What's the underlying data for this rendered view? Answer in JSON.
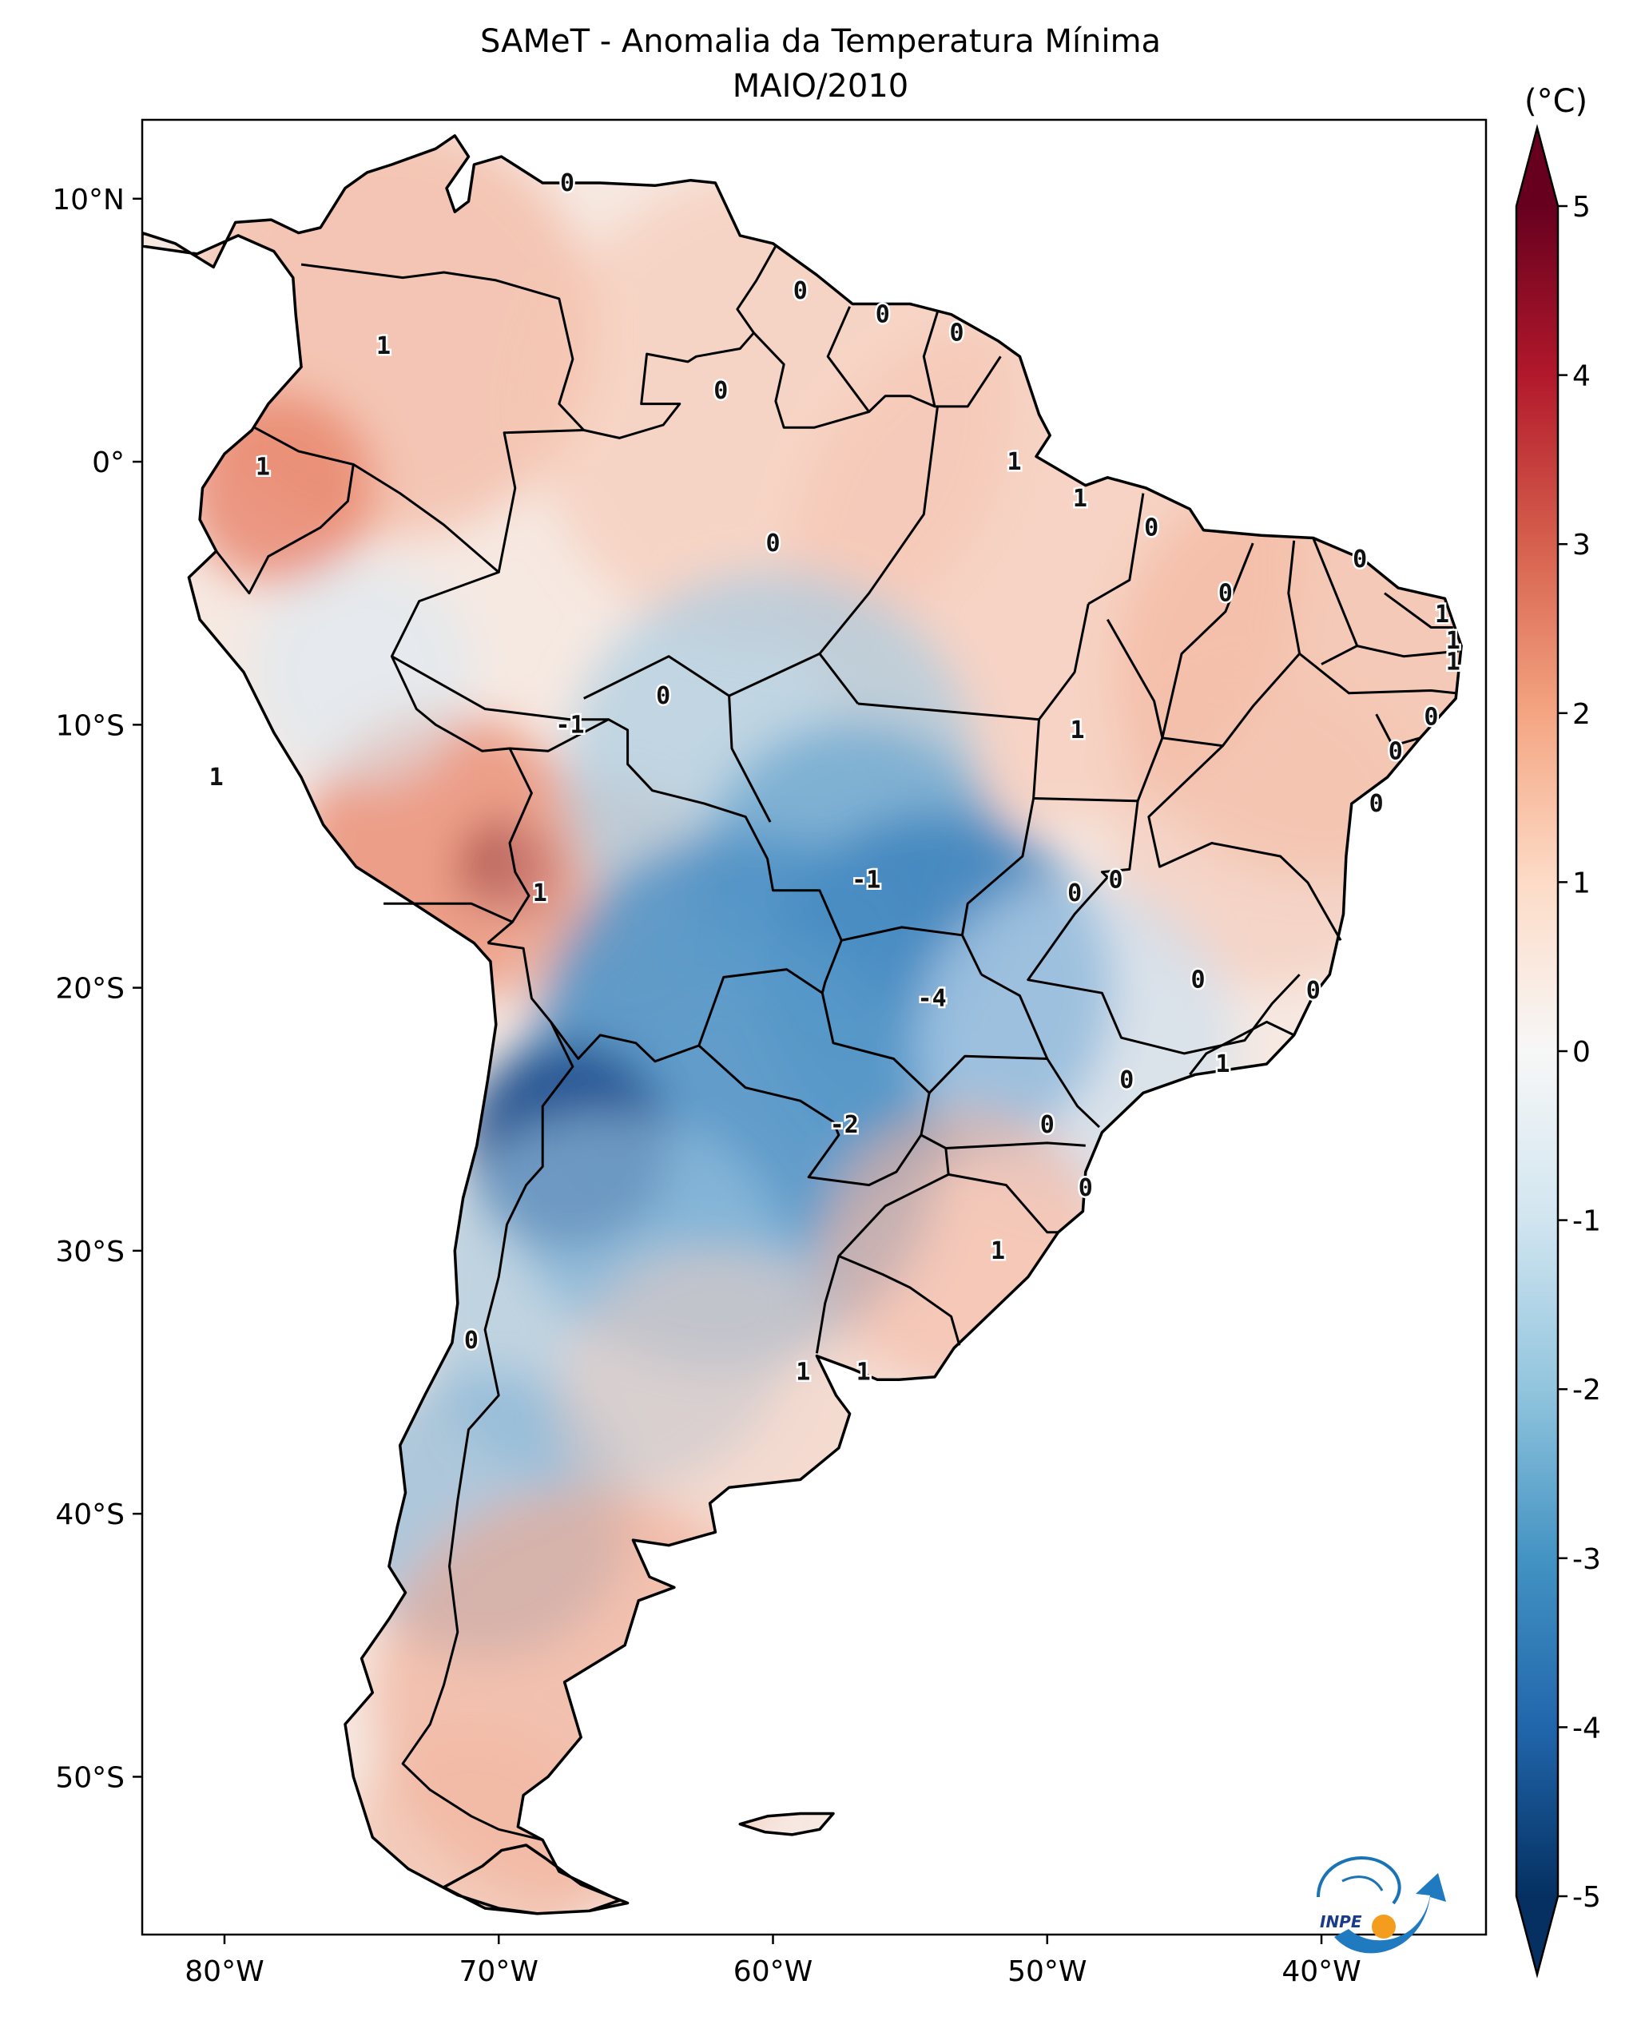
{
  "title_line1": "SAMeT - Anomalia da Temperatura Mínima",
  "title_line2": "MAIO/2010",
  "units": "(°C)",
  "logo_text": "INPE",
  "lon_ticks": [
    {
      "value": -80,
      "label": "80°W"
    },
    {
      "value": -70,
      "label": "70°W"
    },
    {
      "value": -60,
      "label": "60°W"
    },
    {
      "value": -50,
      "label": "50°W"
    },
    {
      "value": -40,
      "label": "40°W"
    }
  ],
  "lat_ticks": [
    {
      "value": 10,
      "label": "10°N"
    },
    {
      "value": 0,
      "label": "0°"
    },
    {
      "value": -10,
      "label": "10°S"
    },
    {
      "value": -20,
      "label": "20°S"
    },
    {
      "value": -30,
      "label": "30°S"
    },
    {
      "value": -40,
      "label": "40°S"
    },
    {
      "value": -50,
      "label": "50°S"
    }
  ],
  "colorbar": {
    "min": -5,
    "max": 5,
    "ticks": [
      "-5",
      "-4",
      "-3",
      "-2",
      "-1",
      "0",
      "1",
      "2",
      "3",
      "4",
      "5"
    ],
    "colors": [
      "#053061",
      "#2166ac",
      "#4393c3",
      "#92c5de",
      "#d1e5f0",
      "#f7f7f7",
      "#fddbc7",
      "#f4a582",
      "#d6604d",
      "#b2182b",
      "#67001f"
    ]
  },
  "map_extent": {
    "lon_min": -83,
    "lon_max": -34,
    "lat_min": -56,
    "lat_max": 13
  },
  "contour_labels": [
    {
      "text": "0",
      "lon": -67.5,
      "lat": 10.6
    },
    {
      "text": "0",
      "lon": -59.0,
      "lat": 6.5
    },
    {
      "text": "0",
      "lon": -56.0,
      "lat": 5.6
    },
    {
      "text": "0",
      "lon": -53.3,
      "lat": 4.9
    },
    {
      "text": "1",
      "lon": -74.2,
      "lat": 4.4
    },
    {
      "text": "0",
      "lon": -61.9,
      "lat": 2.7
    },
    {
      "text": "1",
      "lon": -78.6,
      "lat": -0.2
    },
    {
      "text": "1",
      "lon": -51.2,
      "lat": 0.0
    },
    {
      "text": "1",
      "lon": -48.8,
      "lat": -1.4
    },
    {
      "text": "0",
      "lon": -60.0,
      "lat": -3.1
    },
    {
      "text": "0",
      "lon": -46.2,
      "lat": -2.5
    },
    {
      "text": "0",
      "lon": -43.5,
      "lat": -5.0
    },
    {
      "text": "0",
      "lon": -38.6,
      "lat": -3.7
    },
    {
      "text": "1",
      "lon": -35.6,
      "lat": -5.8
    },
    {
      "text": "1",
      "lon": -35.2,
      "lat": -6.8
    },
    {
      "text": "1",
      "lon": -35.2,
      "lat": -7.6
    },
    {
      "text": "0",
      "lon": -64.0,
      "lat": -8.9
    },
    {
      "text": "-1",
      "lon": -67.4,
      "lat": -10.0
    },
    {
      "text": "1",
      "lon": -48.9,
      "lat": -10.2
    },
    {
      "text": "0",
      "lon": -36.0,
      "lat": -9.7
    },
    {
      "text": "0",
      "lon": -37.3,
      "lat": -11.0
    },
    {
      "text": "1",
      "lon": -80.3,
      "lat": -12.0
    },
    {
      "text": "0",
      "lon": -38.0,
      "lat": -13.0
    },
    {
      "text": "-1",
      "lon": -56.6,
      "lat": -15.9
    },
    {
      "text": "0",
      "lon": -47.5,
      "lat": -15.9
    },
    {
      "text": "0",
      "lon": -49.0,
      "lat": -16.4
    },
    {
      "text": "1",
      "lon": -68.5,
      "lat": -16.4
    },
    {
      "text": "-4",
      "lon": -54.2,
      "lat": -20.4
    },
    {
      "text": "0",
      "lon": -44.5,
      "lat": -19.7
    },
    {
      "text": "0",
      "lon": -40.3,
      "lat": -20.1
    },
    {
      "text": "1",
      "lon": -43.6,
      "lat": -22.9
    },
    {
      "text": "0",
      "lon": -47.1,
      "lat": -23.5
    },
    {
      "text": "-2",
      "lon": -57.4,
      "lat": -25.2
    },
    {
      "text": "0",
      "lon": -50.0,
      "lat": -25.2
    },
    {
      "text": "0",
      "lon": -48.6,
      "lat": -27.6
    },
    {
      "text": "1",
      "lon": -51.8,
      "lat": -30.0
    },
    {
      "text": "0",
      "lon": -71.0,
      "lat": -33.4
    },
    {
      "text": "1",
      "lon": -58.9,
      "lat": -34.6
    },
    {
      "text": "1",
      "lon": -56.7,
      "lat": -34.6
    }
  ]
}
